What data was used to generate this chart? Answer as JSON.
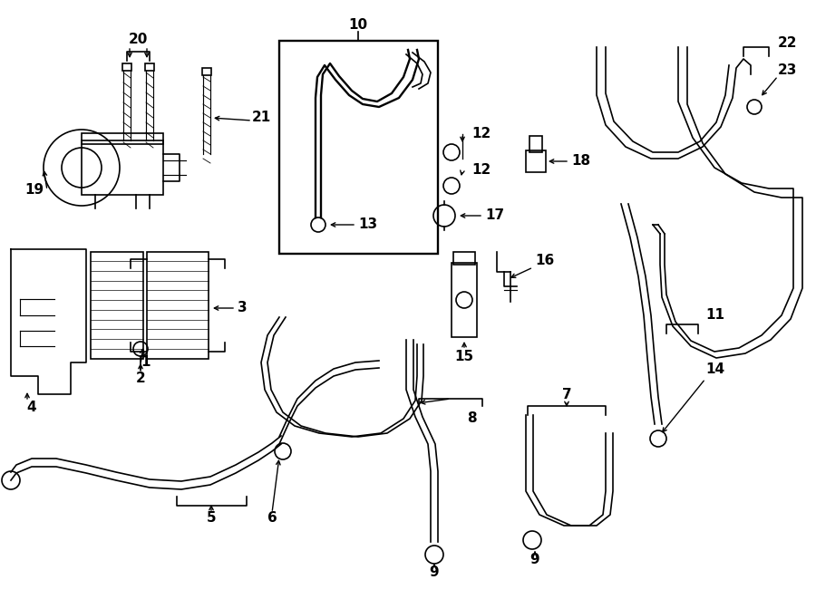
{
  "bg_color": "#ffffff",
  "lc": "#000000",
  "figsize": [
    9.0,
    6.61
  ],
  "dpi": 100,
  "lw": 1.2,
  "fs": 10
}
